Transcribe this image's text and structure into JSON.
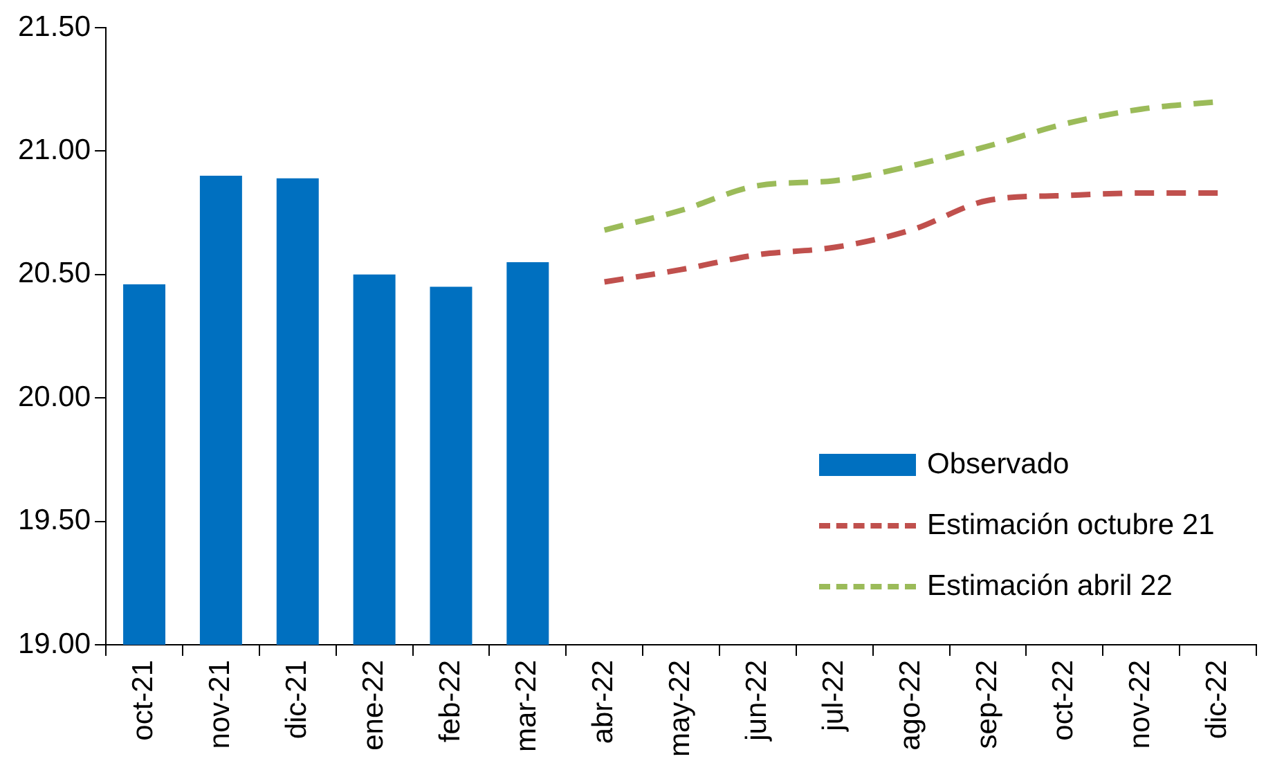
{
  "chart_data": {
    "type": "bar",
    "categories": [
      "oct-21",
      "nov-21",
      "dic-21",
      "ene-22",
      "feb-22",
      "mar-22",
      "abr-22",
      "may-22",
      "jun-22",
      "jul-22",
      "ago-22",
      "sep-22",
      "oct-22",
      "nov-22",
      "dic-22"
    ],
    "series": [
      {
        "name": "Observado",
        "color": "#0070c0",
        "values": [
          20.46,
          20.9,
          20.89,
          20.5,
          20.45,
          20.55,
          null,
          null,
          null,
          null,
          null,
          null,
          null,
          null,
          null
        ]
      },
      {
        "name": "Estimación octubre 21",
        "type": "line",
        "line_style": "dashed",
        "color": "#c0504d",
        "values": [
          null,
          null,
          null,
          null,
          null,
          null,
          20.47,
          20.52,
          20.58,
          20.61,
          20.68,
          20.8,
          20.82,
          20.83,
          20.83
        ]
      },
      {
        "name": "Estimación abril 22",
        "type": "line",
        "line_style": "dashed",
        "color": "#9bbb59",
        "values": [
          null,
          null,
          null,
          null,
          null,
          null,
          20.68,
          20.76,
          20.86,
          20.88,
          20.94,
          21.02,
          21.11,
          21.17,
          21.2
        ]
      }
    ],
    "ylim": [
      19,
      21.5
    ],
    "yticks": [
      {
        "value": 19,
        "label": "19.00"
      },
      {
        "value": 19.5,
        "label": "19.50"
      },
      {
        "value": 20,
        "label": "20.00"
      },
      {
        "value": 20.5,
        "label": "20.50"
      },
      {
        "value": 21,
        "label": "21.00"
      },
      {
        "value": 21.5,
        "label": "21.50"
      }
    ],
    "grid": false,
    "legend": "bottom right",
    "marker": "none"
  }
}
